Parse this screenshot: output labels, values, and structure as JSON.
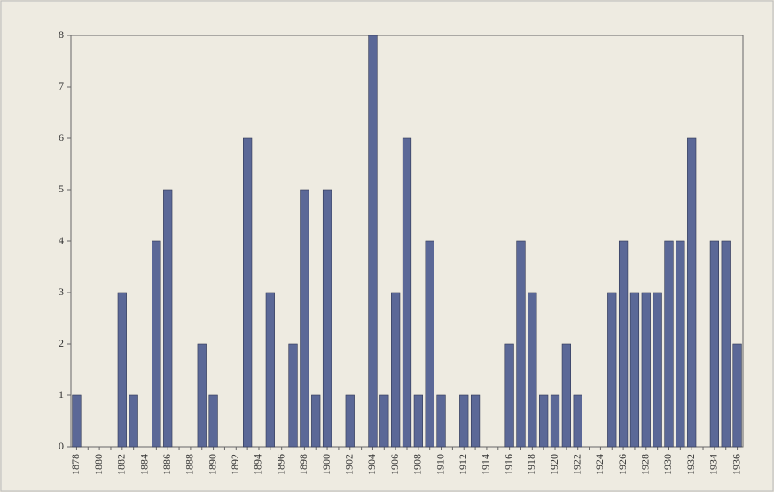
{
  "chart_data": {
    "type": "bar",
    "categories": [
      "1878",
      null,
      "1880",
      null,
      "1882",
      null,
      "1884",
      null,
      "1886",
      null,
      "1888",
      null,
      "1890",
      null,
      "1892",
      null,
      "1894",
      null,
      "1896",
      null,
      "1898",
      null,
      "1900",
      null,
      "1902",
      null,
      "1904",
      null,
      "1906",
      null,
      "1908",
      null,
      "1910",
      null,
      "1912",
      null,
      "1914",
      null,
      "1916",
      null,
      "1918",
      null,
      "1920",
      null,
      "1922",
      null,
      "1924",
      null,
      "1926",
      null,
      "1928",
      null,
      "1930",
      null,
      "1932",
      null,
      "1934",
      null,
      "1936"
    ],
    "values": [
      1,
      0,
      0,
      0,
      3,
      1,
      0,
      4,
      5,
      0,
      0,
      2,
      1,
      0,
      0,
      6,
      0,
      3,
      0,
      2,
      5,
      1,
      5,
      0,
      1,
      0,
      8,
      1,
      3,
      6,
      1,
      4,
      1,
      0,
      1,
      1,
      0,
      0,
      2,
      4,
      3,
      1,
      1,
      2,
      1,
      0,
      0,
      3,
      4,
      3,
      3,
      3,
      4,
      4,
      6,
      0,
      4,
      4,
      2
    ],
    "color": "#5b6897",
    "ylim": [
      0,
      8
    ],
    "yticks": [
      0,
      1,
      2,
      3,
      4,
      5,
      6,
      7,
      8
    ]
  }
}
